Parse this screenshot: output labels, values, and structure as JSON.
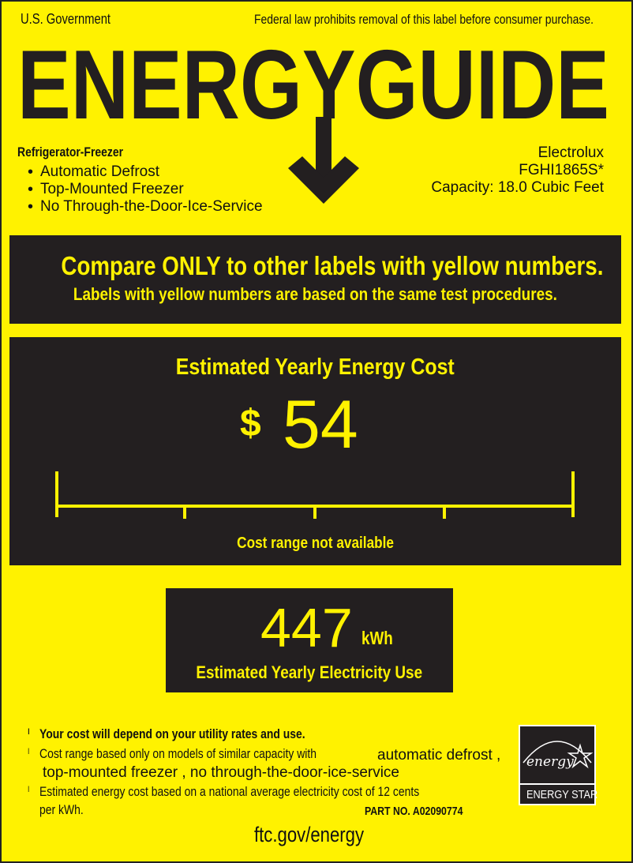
{
  "header": {
    "left": "U.S. Government",
    "right": "Federal law prohibits removal of this label before consumer purchase.",
    "title": "ENERGYGUIDE"
  },
  "product": {
    "type": "Refrigerator-Freezer",
    "features": [
      "Automatic Defrost",
      "Top-Mounted Freezer",
      "No Through-the-Door-Ice-Service"
    ],
    "brand": "Electrolux",
    "model": "FGHI1865S*",
    "capacity": "Capacity: 18.0 Cubic Feet"
  },
  "compare": {
    "line1": "Compare ONLY to other labels with yellow numbers.",
    "line2": "Labels with yellow numbers are based on the same test procedures."
  },
  "cost": {
    "heading": "Estimated Yearly Energy Cost",
    "currency": "$",
    "value": "54",
    "range_note": "Cost range not available"
  },
  "electricity": {
    "value": "447",
    "unit": "kWh",
    "label": "Estimated Yearly Electricity Use"
  },
  "notes": {
    "n1": "Your cost will depend on your utility rates and use.",
    "n2a": "Cost range based only on models of similar capacity with",
    "n2b": "automatic defrost ,",
    "n2c": "top-mounted freezer , no through-the-door-ice-service",
    "n3a": "Estimated energy cost based on a national average electricity cost of 12 cents",
    "n3b": "per kWh.",
    "marker": "l"
  },
  "part_no": "PART NO. A02090774",
  "url": "ftc.gov/energy",
  "energy_star": {
    "script": "energy",
    "label": "ENERGY STAR"
  },
  "colors": {
    "background": "#fff200",
    "box": "#231f20",
    "text": "#111111"
  }
}
